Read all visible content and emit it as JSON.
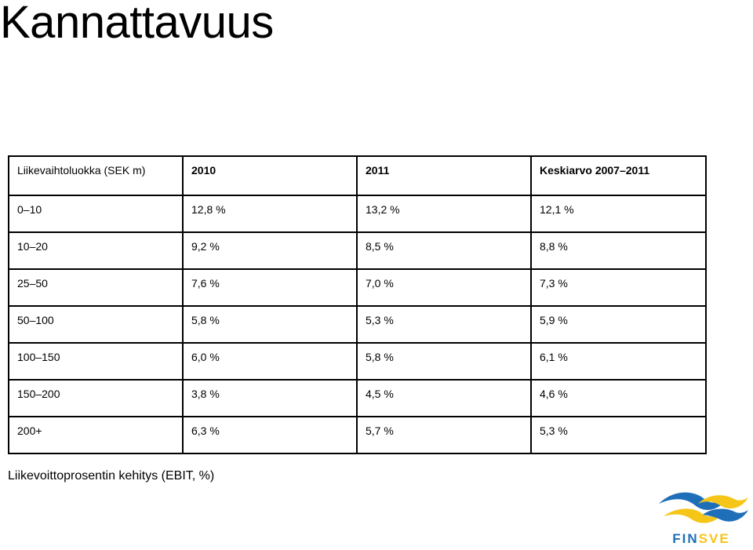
{
  "title": "Kannattavuus",
  "table": {
    "headers": [
      "Liikevaihtoluokka (SEK m)",
      "2010",
      "2011",
      "Keskiarvo 2007–2011"
    ],
    "rows": [
      [
        "0–10",
        "12,8 %",
        "13,2 %",
        "12,1 %"
      ],
      [
        "10–20",
        "9,2 %",
        "8,5 %",
        "8,8 %"
      ],
      [
        "25–50",
        "7,6 %",
        "7,0 %",
        "7,3 %"
      ],
      [
        "50–100",
        "5,8 %",
        "5,3 %",
        "5,9 %"
      ],
      [
        "100–150",
        "6,0 %",
        "5,8 %",
        "6,1 %"
      ],
      [
        "150–200",
        "3,8 %",
        "4,5 %",
        "4,6 %"
      ],
      [
        "200+",
        "6,3 %",
        "5,7 %",
        "5,3 %"
      ]
    ]
  },
  "caption": "Liikevoittoprosentin kehitys (EBIT, %)",
  "logo": {
    "text": "FINSVE",
    "colors": {
      "blue": "#1f6fb8",
      "yellow": "#f5c518"
    }
  }
}
